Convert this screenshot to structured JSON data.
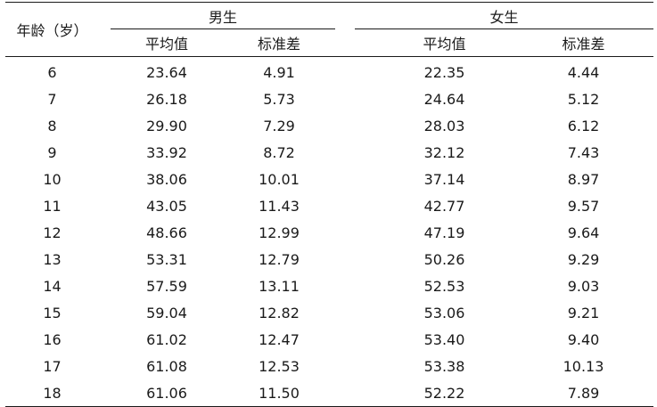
{
  "headers": {
    "age": "年龄（岁）",
    "boys": "男生",
    "girls": "女生",
    "mean": "平均值",
    "sd": "标准差"
  },
  "rows": [
    {
      "age": "6",
      "boys_mean": "23.64",
      "boys_sd": "4.91",
      "girls_mean": "22.35",
      "girls_sd": "4.44"
    },
    {
      "age": "7",
      "boys_mean": "26.18",
      "boys_sd": "5.73",
      "girls_mean": "24.64",
      "girls_sd": "5.12"
    },
    {
      "age": "8",
      "boys_mean": "29.90",
      "boys_sd": "7.29",
      "girls_mean": "28.03",
      "girls_sd": "6.12"
    },
    {
      "age": "9",
      "boys_mean": "33.92",
      "boys_sd": "8.72",
      "girls_mean": "32.12",
      "girls_sd": "7.43"
    },
    {
      "age": "10",
      "boys_mean": "38.06",
      "boys_sd": "10.01",
      "girls_mean": "37.14",
      "girls_sd": "8.97"
    },
    {
      "age": "11",
      "boys_mean": "43.05",
      "boys_sd": "11.43",
      "girls_mean": "42.77",
      "girls_sd": "9.57"
    },
    {
      "age": "12",
      "boys_mean": "48.66",
      "boys_sd": "12.99",
      "girls_mean": "47.19",
      "girls_sd": "9.64"
    },
    {
      "age": "13",
      "boys_mean": "53.31",
      "boys_sd": "12.79",
      "girls_mean": "50.26",
      "girls_sd": "9.29"
    },
    {
      "age": "14",
      "boys_mean": "57.59",
      "boys_sd": "13.11",
      "girls_mean": "52.53",
      "girls_sd": "9.03"
    },
    {
      "age": "15",
      "boys_mean": "59.04",
      "boys_sd": "12.82",
      "girls_mean": "53.06",
      "girls_sd": "9.21"
    },
    {
      "age": "16",
      "boys_mean": "61.02",
      "boys_sd": "12.47",
      "girls_mean": "53.40",
      "girls_sd": "9.40"
    },
    {
      "age": "17",
      "boys_mean": "61.08",
      "boys_sd": "12.53",
      "girls_mean": "53.38",
      "girls_sd": "10.13"
    },
    {
      "age": "18",
      "boys_mean": "61.06",
      "boys_sd": "11.50",
      "girls_mean": "52.22",
      "girls_sd": "7.89"
    }
  ]
}
